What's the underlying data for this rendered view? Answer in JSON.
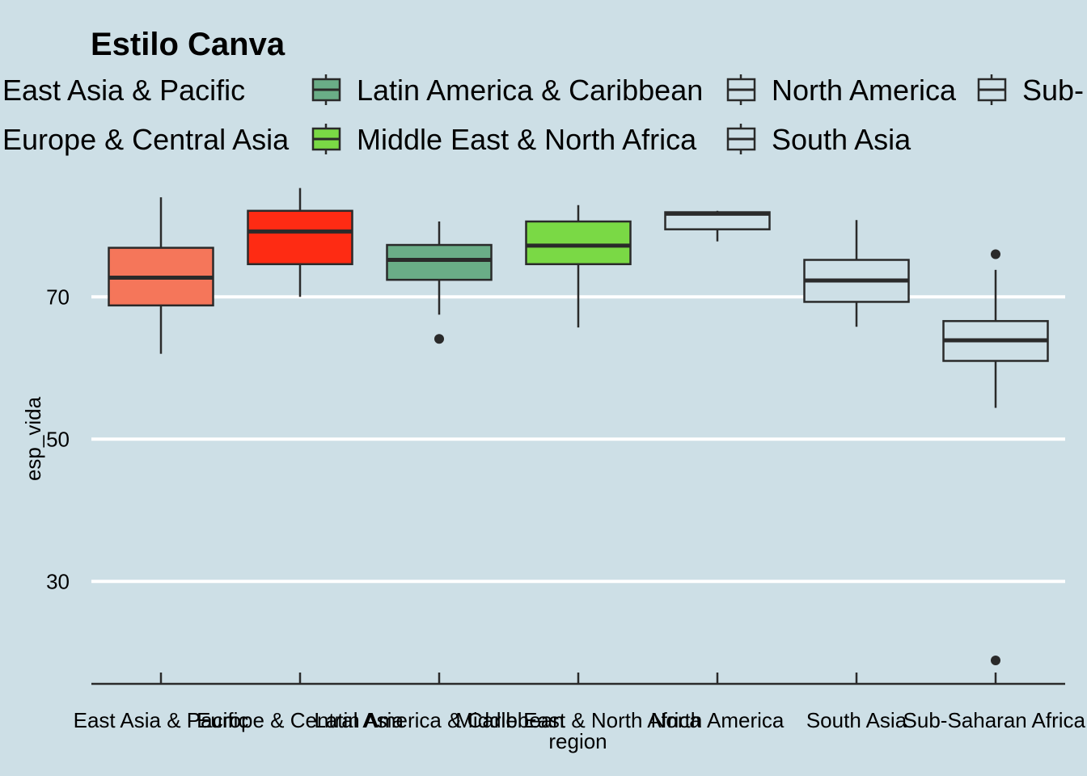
{
  "chart_data": {
    "type": "box",
    "title": "Estilo Canva",
    "xlabel": "region",
    "ylabel": "esp_vida",
    "ylim": [
      15.6,
      85.6
    ],
    "yticks": [
      30,
      50,
      70
    ],
    "grid": "horizontal major lines only",
    "legend_position": "top",
    "categories": [
      "East Asia & Pacific",
      "Europe & Central Asia",
      "Latin America & Caribbean",
      "Middle East & North Africa",
      "North America",
      "South Asia",
      "Sub-Saharan Africa"
    ],
    "legend_entries": [
      "East Asia & Pacific",
      "Europe & Central Asia",
      "Latin America & Caribbean",
      "Middle East & North Africa",
      "North America",
      "South Asia",
      "Sub-Saharan Africa"
    ],
    "legend_visible_labels": [
      "East Asia & Pacific",
      "Europe & Central Asia",
      "Latin America & Caribbean",
      "Middle East & North Africa",
      "North America",
      "South Asia",
      "Sub-"
    ],
    "boxes": [
      {
        "category": "East Asia & Pacific",
        "min": 62.0,
        "q1": 68.8,
        "median": 72.7,
        "q3": 76.9,
        "max": 84.0,
        "outliers": [],
        "fill": "#f5765a"
      },
      {
        "category": "Europe & Central Asia",
        "min": 70.0,
        "q1": 74.6,
        "median": 79.2,
        "q3": 82.1,
        "max": 85.3,
        "outliers": [],
        "fill": "#fe2b13"
      },
      {
        "category": "Latin America & Caribbean",
        "min": 67.5,
        "q1": 72.4,
        "median": 75.2,
        "q3": 77.3,
        "max": 80.6,
        "outliers": [
          64.1
        ],
        "fill": "#6aad87"
      },
      {
        "category": "Middle East & North Africa",
        "min": 65.7,
        "q1": 74.6,
        "median": 77.2,
        "q3": 80.6,
        "max": 82.9,
        "outliers": [],
        "fill": "#7ad945"
      },
      {
        "category": "North America",
        "min": 77.8,
        "q1": 79.5,
        "median": 81.7,
        "q3": 81.9,
        "max": 82.1,
        "outliers": [],
        "fill": "#cddfe6"
      },
      {
        "category": "South Asia",
        "min": 65.8,
        "q1": 69.3,
        "median": 72.3,
        "q3": 75.2,
        "max": 80.8,
        "outliers": [],
        "fill": "#cddfe6"
      },
      {
        "category": "Sub-Saharan Africa",
        "min": 54.4,
        "q1": 61.0,
        "median": 63.9,
        "q3": 66.6,
        "max": 73.8,
        "outliers": [
          76.0,
          18.9
        ],
        "fill": "#cddfe6"
      }
    ],
    "colors": {
      "background": "#cddfe6",
      "gridline": "#ffffff",
      "outline": "#2a2a2a"
    }
  }
}
